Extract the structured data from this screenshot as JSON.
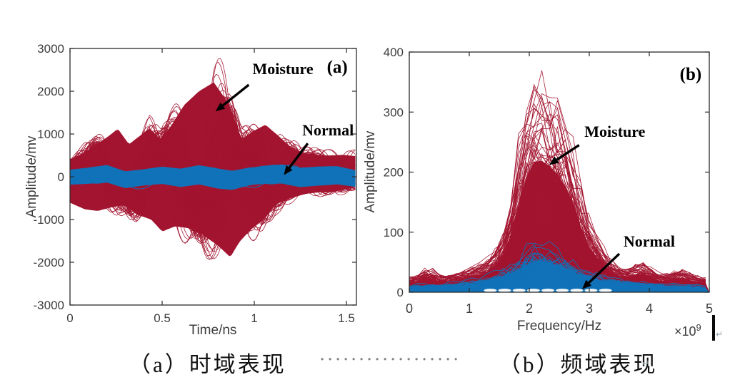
{
  "window": {
    "background": "#ffffff"
  },
  "colors": {
    "moisture": "#A2142F",
    "normal": "#1172B8",
    "axis": "#2b2b2b",
    "tick_text": "#3d3d3d",
    "annotation_text": "#000000",
    "caption_dots": "#7f7f7f",
    "caption_text": "#111111",
    "cursor": "#0a0a0a",
    "format_mark": "#97a3ab"
  },
  "captions": {
    "a": "（a）时域表现",
    "b": "（b）频域表现",
    "separator_dot": "•",
    "dots_count": 18,
    "return_mark": "↵"
  },
  "chart_data": [
    {
      "type": "line",
      "panel_label": "(a)",
      "xlabel": "Time/ns",
      "ylabel": "Amplitude/mv",
      "xlim": [
        0,
        1.554
      ],
      "ylim": [
        -3000,
        3000
      ],
      "xticks": [
        0,
        0.5,
        1,
        1.5
      ],
      "xtick_labels": [
        "0",
        "0.5",
        "1",
        "1.5"
      ],
      "yticks": [
        -3000,
        -2000,
        -1000,
        0,
        1000,
        2000,
        3000
      ],
      "ytick_labels": [
        "-3000",
        "-2000",
        "-1000",
        "0",
        "1000",
        "2000",
        "3000"
      ],
      "grid": false,
      "legend": "none",
      "series": [
        {
          "name": "Moisture",
          "color": "#A2142F",
          "style": "ensemble-oscillatory",
          "trace_count": 100,
          "upper_envelope": [
            [
              0,
              520
            ],
            [
              0.06,
              650
            ],
            [
              0.13,
              900
            ],
            [
              0.2,
              1150
            ],
            [
              0.26,
              1400
            ],
            [
              0.32,
              950
            ],
            [
              0.38,
              1200
            ],
            [
              0.43,
              1420
            ],
            [
              0.49,
              1100
            ],
            [
              0.55,
              1500
            ],
            [
              0.62,
              2100
            ],
            [
              0.7,
              2500
            ],
            [
              0.78,
              2760
            ],
            [
              0.84,
              2300
            ],
            [
              0.88,
              1900
            ],
            [
              0.93,
              1100
            ],
            [
              1.0,
              1350
            ],
            [
              1.06,
              1520
            ],
            [
              1.13,
              1200
            ],
            [
              1.19,
              900
            ],
            [
              1.26,
              700
            ],
            [
              1.33,
              650
            ],
            [
              1.4,
              620
            ],
            [
              1.48,
              640
            ],
            [
              1.554,
              600
            ]
          ],
          "lower_envelope": [
            [
              0,
              760
            ],
            [
              0.08,
              950
            ],
            [
              0.15,
              1000
            ],
            [
              0.22,
              900
            ],
            [
              0.3,
              820
            ],
            [
              0.36,
              1100
            ],
            [
              0.44,
              1250
            ],
            [
              0.5,
              1600
            ],
            [
              0.57,
              1450
            ],
            [
              0.64,
              1500
            ],
            [
              0.72,
              1700
            ],
            [
              0.8,
              2000
            ],
            [
              0.87,
              2350
            ],
            [
              0.92,
              1900
            ],
            [
              0.98,
              1550
            ],
            [
              1.05,
              1250
            ],
            [
              1.12,
              800
            ],
            [
              1.2,
              620
            ],
            [
              1.28,
              500
            ],
            [
              1.36,
              450
            ],
            [
              1.45,
              420
            ],
            [
              1.554,
              300
            ]
          ]
        },
        {
          "name": "Normal",
          "color": "#1172B8",
          "style": "ensemble-band",
          "trace_count": 45,
          "center": [
            [
              0,
              -10
            ],
            [
              0.1,
              25
            ],
            [
              0.2,
              70
            ],
            [
              0.3,
              -70
            ],
            [
              0.4,
              -15
            ],
            [
              0.5,
              35
            ],
            [
              0.6,
              -25
            ],
            [
              0.7,
              45
            ],
            [
              0.8,
              -40
            ],
            [
              0.88,
              -85
            ],
            [
              0.97,
              5
            ],
            [
              1.05,
              45
            ],
            [
              1.15,
              65
            ],
            [
              1.25,
              -15
            ],
            [
              1.35,
              15
            ],
            [
              1.45,
              35
            ],
            [
              1.554,
              -45
            ]
          ],
          "halfwidth": [
            [
              0,
              175
            ],
            [
              0.2,
              205
            ],
            [
              0.4,
              190
            ],
            [
              0.6,
              215
            ],
            [
              0.8,
              235
            ],
            [
              1.0,
              205
            ],
            [
              1.2,
              230
            ],
            [
              1.4,
              220
            ],
            [
              1.554,
              195
            ]
          ]
        }
      ],
      "annotations": [
        {
          "text": "Moisture",
          "x": 0.99,
          "y": 2350,
          "anchor": "bottom-left",
          "arrow": {
            "from": [
              0.97,
              2150
            ],
            "to": [
              0.79,
              1530
            ]
          }
        },
        {
          "text": "Normal",
          "x": 1.26,
          "y": 920,
          "anchor": "bottom-left",
          "arrow": {
            "from": [
              1.29,
              780
            ],
            "to": [
              1.16,
              40
            ]
          }
        },
        {
          "text": "(a)",
          "x": 1.45,
          "y": 2550,
          "style": "panel"
        }
      ]
    },
    {
      "type": "line",
      "panel_label": "(b)",
      "xlabel": "Frequency/Hz",
      "ylabel": "Amplitude/mv",
      "x_multiplier": {
        "base": "×10",
        "exp": "9"
      },
      "xlim": [
        0,
        5
      ],
      "ylim": [
        0,
        400
      ],
      "xticks": [
        0,
        1,
        2,
        3,
        4,
        5
      ],
      "xtick_labels": [
        "0",
        "1",
        "2",
        "3",
        "4",
        "5"
      ],
      "yticks": [
        0,
        100,
        200,
        300,
        400
      ],
      "ytick_labels": [
        "0",
        "100",
        "200",
        "300",
        "400"
      ],
      "grid": false,
      "legend": "none",
      "x_unit_scale": 1000000000.0,
      "series": [
        {
          "name": "Moisture",
          "color": "#A2142F",
          "style": "ensemble-spectrum",
          "trace_count": 130,
          "upper_envelope": [
            [
              0,
              24
            ],
            [
              0.18,
              30
            ],
            [
              0.33,
              42
            ],
            [
              0.5,
              28
            ],
            [
              0.65,
              30
            ],
            [
              0.8,
              32
            ],
            [
              1.0,
              40
            ],
            [
              1.15,
              45
            ],
            [
              1.3,
              55
            ],
            [
              1.45,
              75
            ],
            [
              1.6,
              110
            ],
            [
              1.75,
              185
            ],
            [
              1.9,
              280
            ],
            [
              2.0,
              335
            ],
            [
              2.1,
              355
            ],
            [
              2.25,
              352
            ],
            [
              2.4,
              330
            ],
            [
              2.55,
              300
            ],
            [
              2.7,
              255
            ],
            [
              2.85,
              175
            ],
            [
              3.0,
              120
            ],
            [
              3.15,
              90
            ],
            [
              3.3,
              60
            ],
            [
              3.45,
              45
            ],
            [
              3.6,
              40
            ],
            [
              3.75,
              45
            ],
            [
              3.9,
              50
            ],
            [
              4.05,
              38
            ],
            [
              4.2,
              30
            ],
            [
              4.35,
              32
            ],
            [
              4.55,
              38
            ],
            [
              4.7,
              30
            ],
            [
              4.85,
              26
            ],
            [
              5,
              25
            ]
          ]
        },
        {
          "name": "Normal",
          "color": "#1172B8",
          "style": "ensemble-spectrum",
          "trace_count": 60,
          "upper_envelope": [
            [
              0,
              9
            ],
            [
              0.3,
              10
            ],
            [
              0.6,
              11
            ],
            [
              0.9,
              14
            ],
            [
              1.2,
              18
            ],
            [
              1.5,
              26
            ],
            [
              1.8,
              42
            ],
            [
              2.0,
              55
            ],
            [
              2.15,
              62
            ],
            [
              2.3,
              58
            ],
            [
              2.5,
              50
            ],
            [
              2.7,
              42
            ],
            [
              2.9,
              30
            ],
            [
              3.1,
              25
            ],
            [
              3.3,
              20
            ],
            [
              3.6,
              16
            ],
            [
              4.0,
              12
            ],
            [
              4.4,
              10
            ],
            [
              4.7,
              9
            ],
            [
              5,
              8
            ]
          ]
        }
      ],
      "annotations": [
        {
          "text": "Moisture",
          "x": 2.92,
          "y": 255,
          "anchor": "bottom-left",
          "arrow": {
            "from": [
              2.83,
              245
            ],
            "to": [
              2.33,
              212
            ]
          }
        },
        {
          "text": "Normal",
          "x": 3.57,
          "y": 72,
          "anchor": "bottom-left",
          "arrow": {
            "from": [
              3.5,
              64
            ],
            "to": [
              2.88,
              5
            ]
          }
        },
        {
          "text": "(b)",
          "x": 4.69,
          "y": 362,
          "style": "panel"
        }
      ]
    }
  ]
}
